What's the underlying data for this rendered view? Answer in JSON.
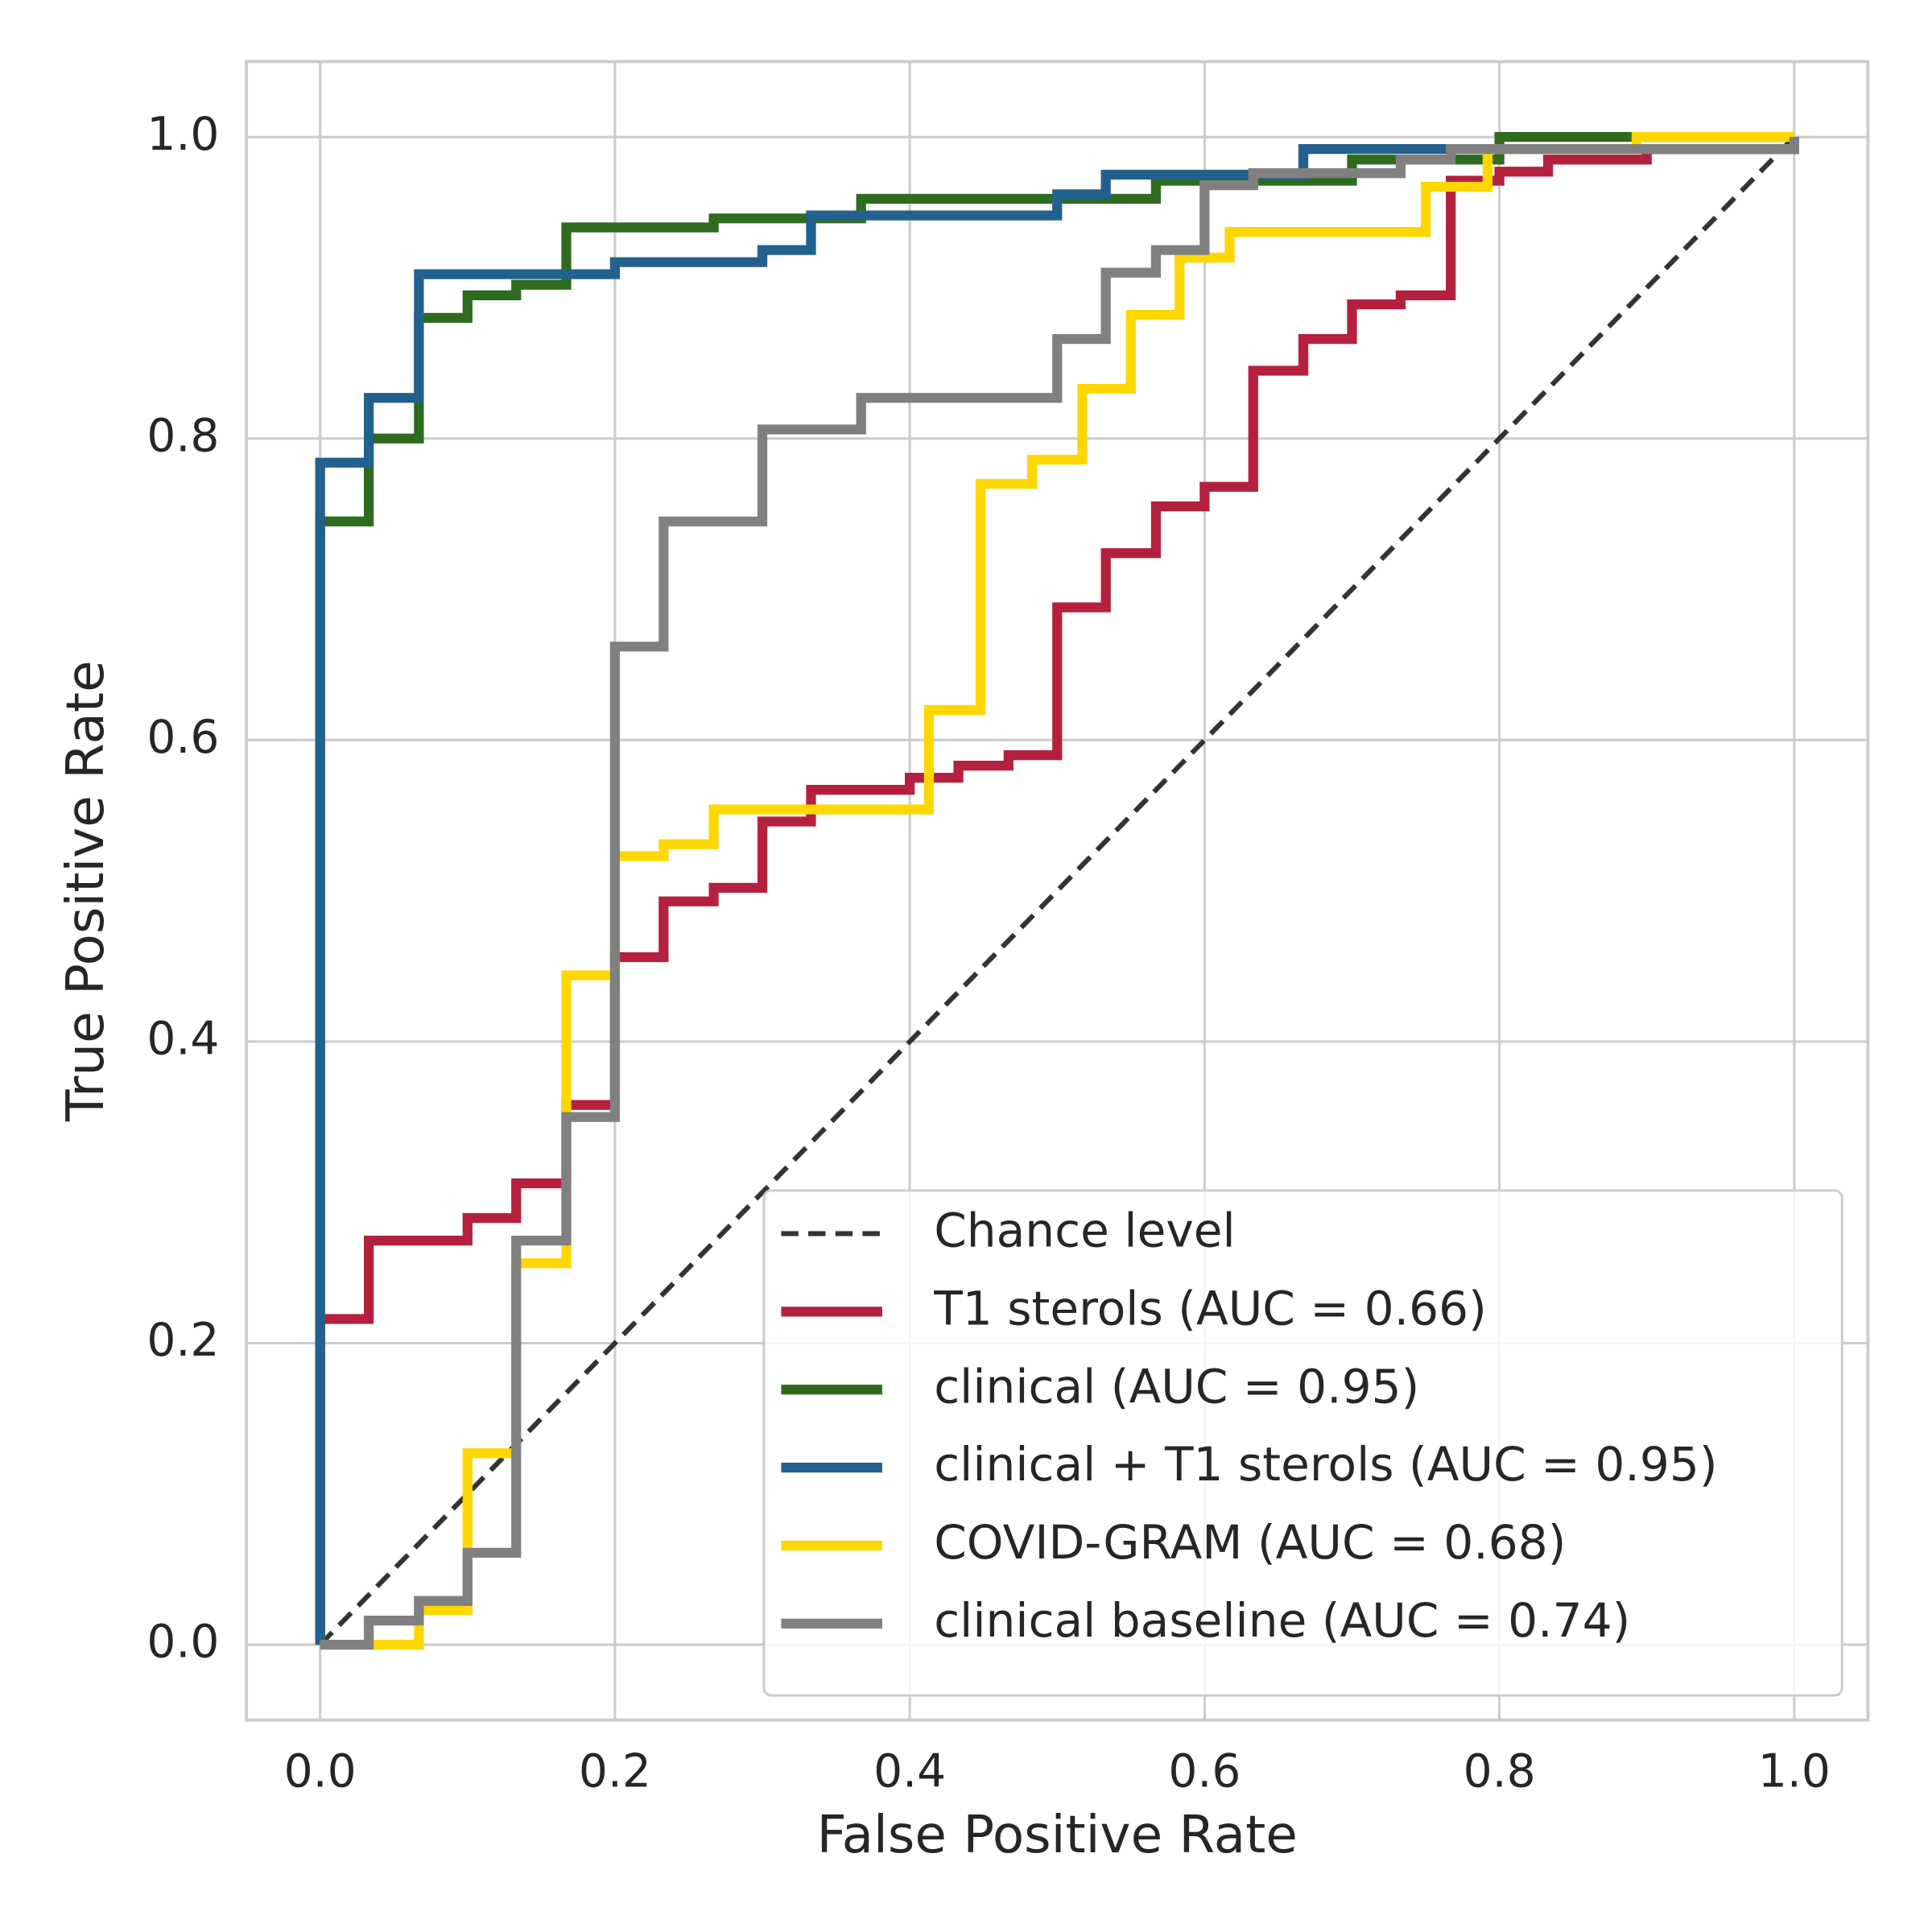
{
  "chart_data": {
    "type": "line",
    "xlabel": "False Positive Rate",
    "ylabel": "True Positive Rate",
    "xlim": [
      -0.05,
      1.05
    ],
    "ylim": [
      -0.05,
      1.05
    ],
    "xticks": [
      {
        "value": 0,
        "label": "0.0"
      },
      0.2,
      0.4,
      0.6,
      0.8,
      {
        "value": 1,
        "label": "1.0"
      }
    ],
    "yticks": [
      {
        "value": 0,
        "label": "0.0"
      },
      0.2,
      0.4,
      0.6,
      0.8,
      {
        "value": 1,
        "label": "1.0"
      }
    ],
    "grid": true,
    "legend": "lower right",
    "series": [
      {
        "name": "Chance level",
        "color": "#333333",
        "linestyle": "dashed",
        "x": [
          0,
          1
        ],
        "values": [
          0,
          1
        ]
      },
      {
        "name": "T1 sterols (AUC = 0.66)",
        "color": "#b5203f",
        "x": [
          0,
          0,
          0.033,
          0.033,
          0.1,
          0.1,
          0.133,
          0.133,
          0.167,
          0.167,
          0.2,
          0.2,
          0.233,
          0.233,
          0.267,
          0.267,
          0.3,
          0.3,
          0.333,
          0.333,
          0.4,
          0.4,
          0.433,
          0.433,
          0.467,
          0.467,
          0.5,
          0.5,
          0.533,
          0.533,
          0.567,
          0.567,
          0.6,
          0.6,
          0.633,
          0.633,
          0.667,
          0.667,
          0.7,
          0.7,
          0.733,
          0.733,
          0.767,
          0.767,
          0.8,
          0.8,
          0.833,
          0.833,
          0.9,
          0.9,
          1,
          1
        ],
        "values": [
          0,
          0.216,
          0.216,
          0.268,
          0.268,
          0.283,
          0.283,
          0.306,
          0.306,
          0.358,
          0.358,
          0.456,
          0.456,
          0.493,
          0.493,
          0.502,
          0.502,
          0.546,
          0.546,
          0.567,
          0.567,
          0.575,
          0.575,
          0.583,
          0.583,
          0.59,
          0.59,
          0.688,
          0.688,
          0.724,
          0.724,
          0.755,
          0.755,
          0.768,
          0.768,
          0.845,
          0.845,
          0.866,
          0.866,
          0.889,
          0.889,
          0.895,
          0.895,
          0.971,
          0.971,
          0.977,
          0.977,
          0.985,
          0.985,
          0.992,
          0.992,
          1
        ]
      },
      {
        "name": "clinical (AUC = 0.95)",
        "color": "#2e6b1f",
        "x": [
          0,
          0,
          0.033,
          0.033,
          0.067,
          0.067,
          0.1,
          0.1,
          0.133,
          0.133,
          0.167,
          0.167,
          0.267,
          0.267,
          0.367,
          0.367,
          0.567,
          0.567,
          0.7,
          0.7,
          0.8,
          0.8,
          1
        ],
        "values": [
          0,
          0.745,
          0.745,
          0.8,
          0.8,
          0.88,
          0.88,
          0.895,
          0.895,
          0.902,
          0.902,
          0.94,
          0.94,
          0.946,
          0.946,
          0.959,
          0.959,
          0.971,
          0.971,
          0.985,
          0.985,
          1,
          1
        ]
      },
      {
        "name": "clinical + T1 sterols (AUC = 0.95)",
        "color": "#22618e",
        "x": [
          0,
          0,
          0.033,
          0.033,
          0.067,
          0.067,
          0.2,
          0.2,
          0.3,
          0.3,
          0.333,
          0.333,
          0.5,
          0.5,
          0.533,
          0.533,
          0.667,
          0.667,
          1,
          1
        ],
        "values": [
          0,
          0.784,
          0.784,
          0.827,
          0.827,
          0.909,
          0.909,
          0.917,
          0.917,
          0.925,
          0.925,
          0.948,
          0.948,
          0.962,
          0.962,
          0.975,
          0.975,
          0.992,
          0.992,
          1
        ]
      },
      {
        "name": "COVID-GRAM (AUC = 0.68)",
        "color": "#ffd700",
        "x": [
          0,
          0.067,
          0.067,
          0.1,
          0.1,
          0.133,
          0.133,
          0.167,
          0.167,
          0.2,
          0.2,
          0.233,
          0.233,
          0.267,
          0.267,
          0.413,
          0.413,
          0.448,
          0.448,
          0.483,
          0.483,
          0.517,
          0.517,
          0.55,
          0.55,
          0.583,
          0.583,
          0.617,
          0.617,
          0.75,
          0.75,
          0.792,
          0.792,
          0.893,
          0.893,
          1
        ],
        "values": [
          0,
          0,
          0.023,
          0.023,
          0.127,
          0.127,
          0.253,
          0.253,
          0.444,
          0.444,
          0.523,
          0.523,
          0.531,
          0.531,
          0.554,
          0.554,
          0.62,
          0.62,
          0.77,
          0.77,
          0.786,
          0.786,
          0.833,
          0.833,
          0.882,
          0.882,
          0.92,
          0.92,
          0.937,
          0.937,
          0.967,
          0.967,
          0.992,
          0.992,
          1,
          1
        ]
      },
      {
        "name": "clinical baseline (AUC = 0.74)",
        "color": "#808080",
        "x": [
          0,
          0.033,
          0.033,
          0.067,
          0.067,
          0.1,
          0.1,
          0.133,
          0.133,
          0.167,
          0.167,
          0.2,
          0.2,
          0.233,
          0.233,
          0.3,
          0.3,
          0.367,
          0.367,
          0.5,
          0.5,
          0.533,
          0.533,
          0.567,
          0.567,
          0.6,
          0.6,
          0.633,
          0.633,
          0.733,
          0.733,
          0.767,
          0.767,
          1,
          1
        ],
        "values": [
          0,
          0,
          0.016,
          0.016,
          0.029,
          0.029,
          0.061,
          0.061,
          0.268,
          0.268,
          0.35,
          0.35,
          0.662,
          0.662,
          0.745,
          0.745,
          0.806,
          0.806,
          0.827,
          0.827,
          0.866,
          0.866,
          0.91,
          0.91,
          0.925,
          0.925,
          0.968,
          0.968,
          0.976,
          0.976,
          0.985,
          0.985,
          0.992,
          0.992,
          1
        ]
      }
    ]
  }
}
